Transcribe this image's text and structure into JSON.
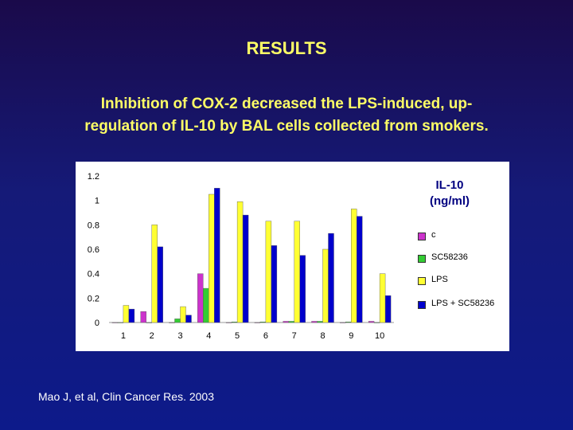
{
  "slide": {
    "title": "RESULTS",
    "subtitle_line1": "Inhibition of COX-2 decreased the LPS-induced, up-",
    "subtitle_line2": "regulation of IL-10 by BAL cells collected from smokers.",
    "citation": "Mao J, et al,  Clin Cancer Res. 2003",
    "colors": {
      "background": "#151a78",
      "title_text": "#ffff66",
      "citation_text": "#ffffff"
    }
  },
  "chart_data": {
    "type": "bar",
    "unit_label_line1": "IL-10",
    "unit_label_line2": "(ng/ml)",
    "categories": [
      "1",
      "2",
      "3",
      "4",
      "5",
      "6",
      "7",
      "8",
      "9",
      "10"
    ],
    "y_ticks": [
      "0",
      "0.2",
      "0.4",
      "0.6",
      "0.8",
      "1",
      "1.2"
    ],
    "ylim": [
      0,
      1.2
    ],
    "series": [
      {
        "name": "c",
        "color": "#cc33cc",
        "values": [
          0,
          0.09,
          0,
          0.4,
          0,
          0,
          0.01,
          0.01,
          0,
          0.01
        ]
      },
      {
        "name": "SC58236",
        "color": "#33cc33",
        "values": [
          0,
          0,
          0.03,
          0.28,
          0.005,
          0.005,
          0.01,
          0.01,
          0.005,
          0
        ]
      },
      {
        "name": "LPS",
        "color": "#ffff33",
        "values": [
          0.14,
          0.8,
          0.13,
          1.05,
          0.99,
          0.83,
          0.83,
          0.6,
          0.93,
          0.4
        ]
      },
      {
        "name": "LPS + SC58236",
        "color": "#0000cc",
        "values": [
          0.11,
          0.62,
          0.06,
          1.1,
          0.88,
          0.63,
          0.55,
          0.73,
          0.87,
          0.22
        ]
      }
    ],
    "legend_position": "right"
  }
}
